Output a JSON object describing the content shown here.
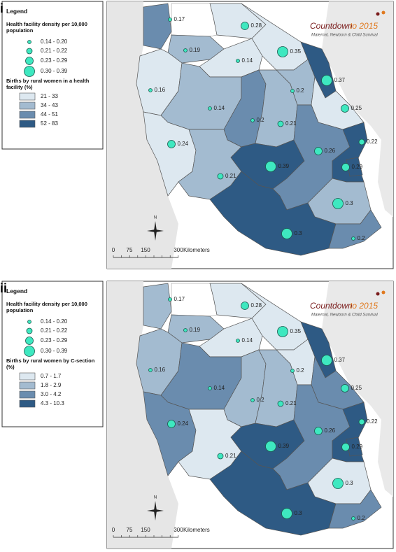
{
  "logo": {
    "title": "Countdown",
    "title2": "to 2015",
    "subtitle": "Maternal, Newborn & Child Survival"
  },
  "panels": [
    {
      "label": "i",
      "legend": {
        "title": "Legend",
        "size_title": "Health facility density per 10,000 population",
        "sizes": [
          "0.14 - 0.20",
          "0.21 - 0.22",
          "0.23 - 0.29",
          "0.30 - 0.39"
        ],
        "fill_title": "Births by rural women in a health facility (%)",
        "fills": [
          {
            "label": "21 - 33",
            "color": "#dde8f0"
          },
          {
            "label": "34 - 43",
            "color": "#a3bbd0"
          },
          {
            "label": "44 - 51",
            "color": "#6a8cae"
          },
          {
            "label": "52 - 83",
            "color": "#2e5a84"
          }
        ]
      },
      "regions": [
        {
          "label": "0.17",
          "size": 0,
          "fill": 2
        },
        {
          "label": "0.19",
          "size": 0,
          "fill": 1
        },
        {
          "label": "0.28",
          "size": 2,
          "fill": 0
        },
        {
          "label": "0.35",
          "size": 3,
          "fill": 0
        },
        {
          "label": "0.37",
          "size": 3,
          "fill": 3
        },
        {
          "label": "0.14",
          "size": 0,
          "fill": 0
        },
        {
          "label": "0.16",
          "size": 0,
          "fill": 0
        },
        {
          "label": "0.14",
          "size": 0,
          "fill": 1
        },
        {
          "label": "0.2",
          "size": 0,
          "fill": 2
        },
        {
          "label": "0.21",
          "size": 1,
          "fill": 1
        },
        {
          "label": "0.2",
          "size": 0,
          "fill": 1
        },
        {
          "label": "0.25",
          "size": 2,
          "fill": 0
        },
        {
          "label": "0.24",
          "size": 2,
          "fill": 0
        },
        {
          "label": "0.21",
          "size": 1,
          "fill": 1
        },
        {
          "label": "0.39",
          "size": 3,
          "fill": 3
        },
        {
          "label": "0.26",
          "size": 2,
          "fill": 2
        },
        {
          "label": "0.22",
          "size": 1,
          "fill": 3
        },
        {
          "label": "0.29",
          "size": 2,
          "fill": 3
        },
        {
          "label": "0.3",
          "size": 3,
          "fill": 1
        },
        {
          "label": "0.3",
          "size": 3,
          "fill": 3
        },
        {
          "label": "0.2",
          "size": 0,
          "fill": 2
        }
      ],
      "north": "N",
      "scale": {
        "ticks": [
          "0",
          "75",
          "150",
          "300"
        ],
        "unit": "Kilometers"
      }
    },
    {
      "label": "ii",
      "legend": {
        "title": "Legend",
        "size_title": "Health facility density per 10,000 population",
        "sizes": [
          "0.14 - 0.20",
          "0.21 - 0.22",
          "0.23 - 0.29",
          "0.30 - 0.39"
        ],
        "fill_title": "Births by rural women by C-section (%)",
        "fills": [
          {
            "label": "0.7 - 1.7",
            "color": "#dde8f0"
          },
          {
            "label": "1.8 - 2.9",
            "color": "#a3bbd0"
          },
          {
            "label": "3.0 - 4.2",
            "color": "#6a8cae"
          },
          {
            "label": "4.3 - 10.3",
            "color": "#2e5a84"
          }
        ]
      },
      "regions": [
        {
          "label": "0.17",
          "size": 0,
          "fill": 1
        },
        {
          "label": "0.19",
          "size": 0,
          "fill": 1
        },
        {
          "label": "0.28",
          "size": 2,
          "fill": 0
        },
        {
          "label": "0.35",
          "size": 3,
          "fill": 0
        },
        {
          "label": "0.37",
          "size": 3,
          "fill": 3
        },
        {
          "label": "0.14",
          "size": 0,
          "fill": 0
        },
        {
          "label": "0.16",
          "size": 0,
          "fill": 1
        },
        {
          "label": "0.14",
          "size": 0,
          "fill": 2
        },
        {
          "label": "0.2",
          "size": 0,
          "fill": 1
        },
        {
          "label": "0.21",
          "size": 1,
          "fill": 1
        },
        {
          "label": "0.2",
          "size": 0,
          "fill": 0
        },
        {
          "label": "0.25",
          "size": 2,
          "fill": 2
        },
        {
          "label": "0.24",
          "size": 2,
          "fill": 2
        },
        {
          "label": "0.21",
          "size": 1,
          "fill": 0
        },
        {
          "label": "0.39",
          "size": 3,
          "fill": 3
        },
        {
          "label": "0.26",
          "size": 2,
          "fill": 2
        },
        {
          "label": "0.22",
          "size": 1,
          "fill": 3
        },
        {
          "label": "0.29",
          "size": 2,
          "fill": 3
        },
        {
          "label": "0.3",
          "size": 3,
          "fill": 0
        },
        {
          "label": "0.3",
          "size": 3,
          "fill": 3
        },
        {
          "label": "0.2",
          "size": 0,
          "fill": 2
        }
      ],
      "north": "N",
      "scale": {
        "ticks": [
          "0",
          "75",
          "150",
          "300"
        ],
        "unit": "Kilometers"
      }
    }
  ]
}
